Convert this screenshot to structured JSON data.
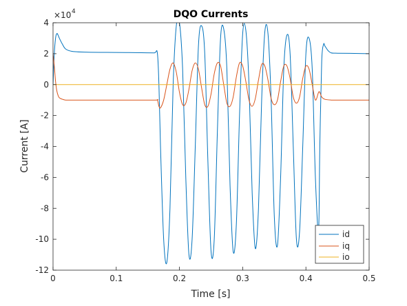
{
  "chart_data": {
    "type": "line",
    "title": "DQO Currents",
    "xlabel": "Time [s]",
    "ylabel": "Current [A]",
    "xlim": [
      0,
      0.5
    ],
    "ylim": [
      -120000,
      40000
    ],
    "xticks": [
      0,
      0.1,
      0.2,
      0.3,
      0.4,
      0.5
    ],
    "xtick_labels": [
      "0",
      "0.1",
      "0.2",
      "0.3",
      "0.4",
      "0.5"
    ],
    "yticks": [
      -120000,
      -100000,
      -80000,
      -60000,
      -40000,
      -20000,
      0,
      20000,
      40000
    ],
    "ytick_labels": [
      "-12",
      "-10",
      "-8",
      "-6",
      "-4",
      "-2",
      "0",
      "2",
      "4"
    ],
    "y_exponent_base": "×10",
    "y_exponent_power": "4",
    "grid": false,
    "legend_position": "bottom-right",
    "series": [
      {
        "name": "id",
        "color": "#0072BD",
        "x": [
          0,
          0.002,
          0.004,
          0.006,
          0.008,
          0.01,
          0.015,
          0.02,
          0.03,
          0.05,
          0.1,
          0.12,
          0.14,
          0.16,
          0.165,
          0.1675,
          0.17,
          0.175,
          0.18,
          0.185,
          0.19,
          0.195,
          0.2,
          0.205,
          0.21,
          0.215,
          0.22,
          0.225,
          0.23,
          0.235,
          0.24,
          0.245,
          0.25,
          0.255,
          0.26,
          0.265,
          0.27,
          0.275,
          0.28,
          0.285,
          0.29,
          0.295,
          0.3,
          0.305,
          0.31,
          0.315,
          0.32,
          0.325,
          0.33,
          0.335,
          0.34,
          0.345,
          0.35,
          0.355,
          0.36,
          0.365,
          0.37,
          0.375,
          0.38,
          0.385,
          0.39,
          0.395,
          0.4,
          0.405,
          0.41,
          0.415,
          0.42,
          0.422,
          0.425,
          0.428,
          0.43,
          0.435,
          0.44,
          0.45,
          0.47,
          0.5
        ],
        "y": [
          0,
          20000,
          30000,
          33000,
          32000,
          30000,
          26000,
          23000,
          21500,
          21000,
          20800,
          20700,
          20600,
          20500,
          20500,
          0,
          -40000,
          -100000,
          -115000,
          -80000,
          0,
          38000,
          40000,
          10000,
          -60000,
          -110000,
          -100000,
          -40000,
          25000,
          38000,
          20000,
          -50000,
          -108000,
          -100000,
          -30000,
          30000,
          36000,
          10000,
          -65000,
          -108000,
          -90000,
          -20000,
          33000,
          35000,
          0,
          -70000,
          -106000,
          -80000,
          -10000,
          34000,
          33000,
          -10000,
          -85000,
          -104000,
          -60000,
          10000,
          32000,
          20000,
          -40000,
          -100000,
          -95000,
          -40000,
          20000,
          30000,
          10000,
          -60000,
          -95000,
          -40000,
          15000,
          26000,
          25000,
          22000,
          20500,
          20300,
          20200,
          20000
        ]
      },
      {
        "name": "iq",
        "color": "#D95319",
        "x": [
          0,
          0.002,
          0.004,
          0.006,
          0.008,
          0.01,
          0.015,
          0.02,
          0.03,
          0.05,
          0.1,
          0.16,
          0.165,
          0.1675,
          0.17,
          0.175,
          0.18,
          0.185,
          0.19,
          0.195,
          0.2,
          0.205,
          0.21,
          0.215,
          0.22,
          0.225,
          0.23,
          0.235,
          0.24,
          0.245,
          0.25,
          0.255,
          0.26,
          0.265,
          0.27,
          0.275,
          0.28,
          0.285,
          0.29,
          0.295,
          0.3,
          0.305,
          0.31,
          0.315,
          0.32,
          0.325,
          0.33,
          0.335,
          0.34,
          0.345,
          0.35,
          0.355,
          0.36,
          0.365,
          0.37,
          0.375,
          0.38,
          0.385,
          0.39,
          0.395,
          0.4,
          0.405,
          0.41,
          0.415,
          0.42,
          0.422,
          0.425,
          0.43,
          0.44,
          0.45,
          0.47,
          0.5
        ],
        "y": [
          20000,
          12000,
          2000,
          -4000,
          -7000,
          -8500,
          -9500,
          -10000,
          -10000,
          -10000,
          -10000,
          -10000,
          -10000,
          -14000,
          -15000,
          -10000,
          0,
          10000,
          14000,
          8000,
          -5000,
          -13000,
          -12000,
          -3000,
          9000,
          14000,
          10000,
          -2000,
          -13000,
          -14000,
          -6000,
          7000,
          14000,
          12000,
          0,
          -12000,
          -14000,
          -8000,
          5000,
          14000,
          12000,
          2000,
          -10000,
          -14000,
          -9000,
          3000,
          13000,
          12000,
          3000,
          -9000,
          -13000,
          -10000,
          2000,
          12000,
          12000,
          4000,
          -8000,
          -12000,
          -8000,
          4000,
          12000,
          10000,
          0,
          -10000,
          -5000,
          -5000,
          -8000,
          -9500,
          -10000,
          -10000,
          -10000,
          -10000
        ]
      },
      {
        "name": "io",
        "color": "#EDB120",
        "x": [
          0,
          0.5
        ],
        "y": [
          0,
          0
        ]
      }
    ]
  }
}
